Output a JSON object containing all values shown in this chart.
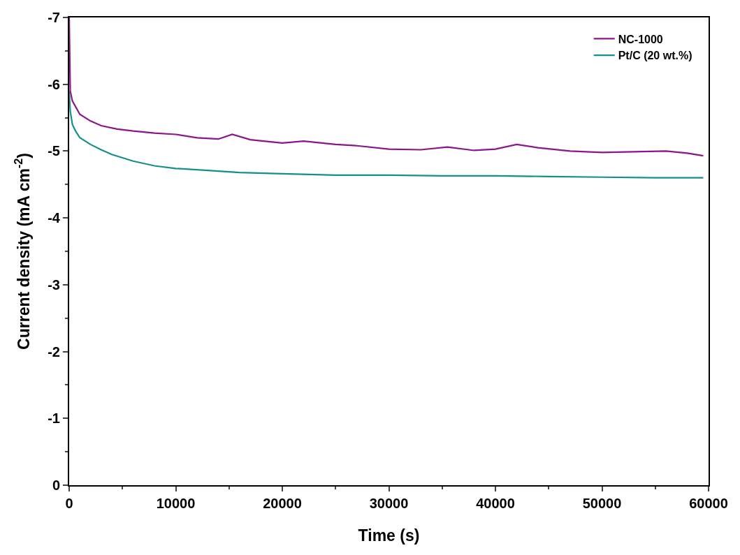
{
  "chart_data": {
    "type": "line",
    "xlabel": "Time (s)",
    "ylabel": "Current density (mA cm$^{-2}$)",
    "xlim": [
      0,
      60000
    ],
    "xticks": [
      0,
      10000,
      20000,
      30000,
      40000,
      50000,
      60000
    ],
    "ylim": [
      0,
      -7
    ],
    "yticks": [
      0,
      -1,
      -2,
      -3,
      -4,
      -5,
      -6,
      -7
    ],
    "grid": false,
    "legend": "top right",
    "marker": "none",
    "line_style": "solid",
    "series": [
      {
        "name": "NC-1000",
        "color": "#8b158b",
        "x": [
          0,
          100,
          300,
          1000,
          2000,
          3000,
          4500,
          6000,
          8000,
          10000,
          12000,
          14000,
          15300,
          17000,
          20000,
          22000,
          25000,
          27000,
          30000,
          33000,
          35500,
          38000,
          40000,
          42000,
          44000,
          47000,
          50000,
          53000,
          56000,
          58000,
          59500
        ],
        "values": [
          -7,
          -5.9,
          -5.75,
          -5.55,
          -5.45,
          -5.38,
          -5.33,
          -5.3,
          -5.27,
          -5.25,
          -5.2,
          -5.18,
          -5.25,
          -5.17,
          -5.12,
          -5.15,
          -5.1,
          -5.08,
          -5.03,
          -5.02,
          -5.06,
          -5.01,
          -5.03,
          -5.1,
          -5.05,
          -5.0,
          -4.98,
          -4.99,
          -5.0,
          -4.97,
          -4.93
        ]
      },
      {
        "name": "Pt/C (20 wt.%)",
        "color": "#13908a",
        "x": [
          0,
          100,
          300,
          600,
          1000,
          2000,
          3000,
          4000,
          5000,
          6000,
          8000,
          10000,
          13000,
          16000,
          20000,
          25000,
          30000,
          35000,
          40000,
          45000,
          50000,
          55000,
          59500
        ],
        "values": [
          -5.9,
          -5.6,
          -5.4,
          -5.3,
          -5.2,
          -5.1,
          -5.02,
          -4.95,
          -4.9,
          -4.85,
          -4.78,
          -4.74,
          -4.71,
          -4.68,
          -4.66,
          -4.64,
          -4.64,
          -4.63,
          -4.63,
          -4.62,
          -4.61,
          -4.6,
          -4.6
        ]
      }
    ]
  }
}
